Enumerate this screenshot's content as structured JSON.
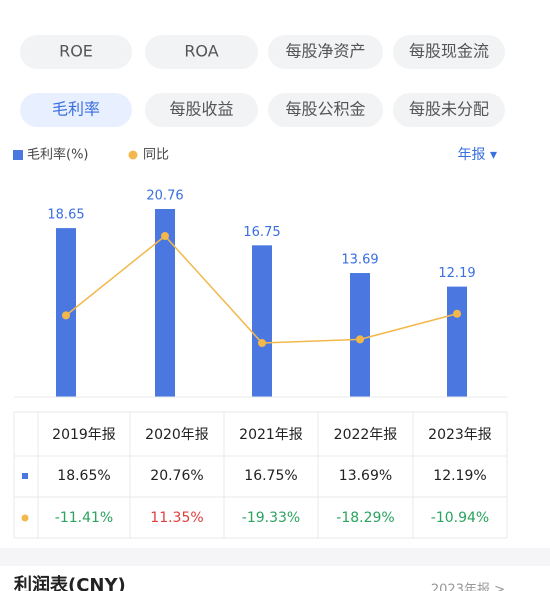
{
  "tabs": [
    {
      "label": "ROE",
      "active": false
    },
    {
      "label": "ROA",
      "active": false
    },
    {
      "label": "每股净资产",
      "active": false
    },
    {
      "label": "每股现金流",
      "active": false
    },
    {
      "label": "毛利率",
      "active": true
    },
    {
      "label": "每股收益",
      "active": false
    },
    {
      "label": "每股公积金",
      "active": false
    },
    {
      "label": "每股未分配",
      "active": false
    }
  ],
  "period": "年报 ▾",
  "chart_data": {
    "type": "combo",
    "categories": [
      "2019年报",
      "2020年报",
      "2021年报",
      "2022年报",
      "2023年报"
    ],
    "series": [
      {
        "name": "毛利率(%)",
        "type": "bar",
        "color": "#4a78e0",
        "values": [
          18.65,
          20.76,
          16.75,
          13.69,
          12.19
        ]
      },
      {
        "name": "同比",
        "type": "line",
        "color": "#f2b84b",
        "values": [
          -11.41,
          11.35,
          -19.33,
          -18.29,
          -10.94
        ]
      }
    ]
  },
  "table": {
    "rows": [
      [
        "18.65%",
        "20.76%",
        "16.75%",
        "13.69%",
        "12.19%"
      ],
      [
        "-11.41%",
        "11.35%",
        "-19.33%",
        "-18.29%",
        "-10.94%"
      ]
    ]
  },
  "section": {
    "title": "利润表(CNY)",
    "link": "2023年报 >"
  }
}
